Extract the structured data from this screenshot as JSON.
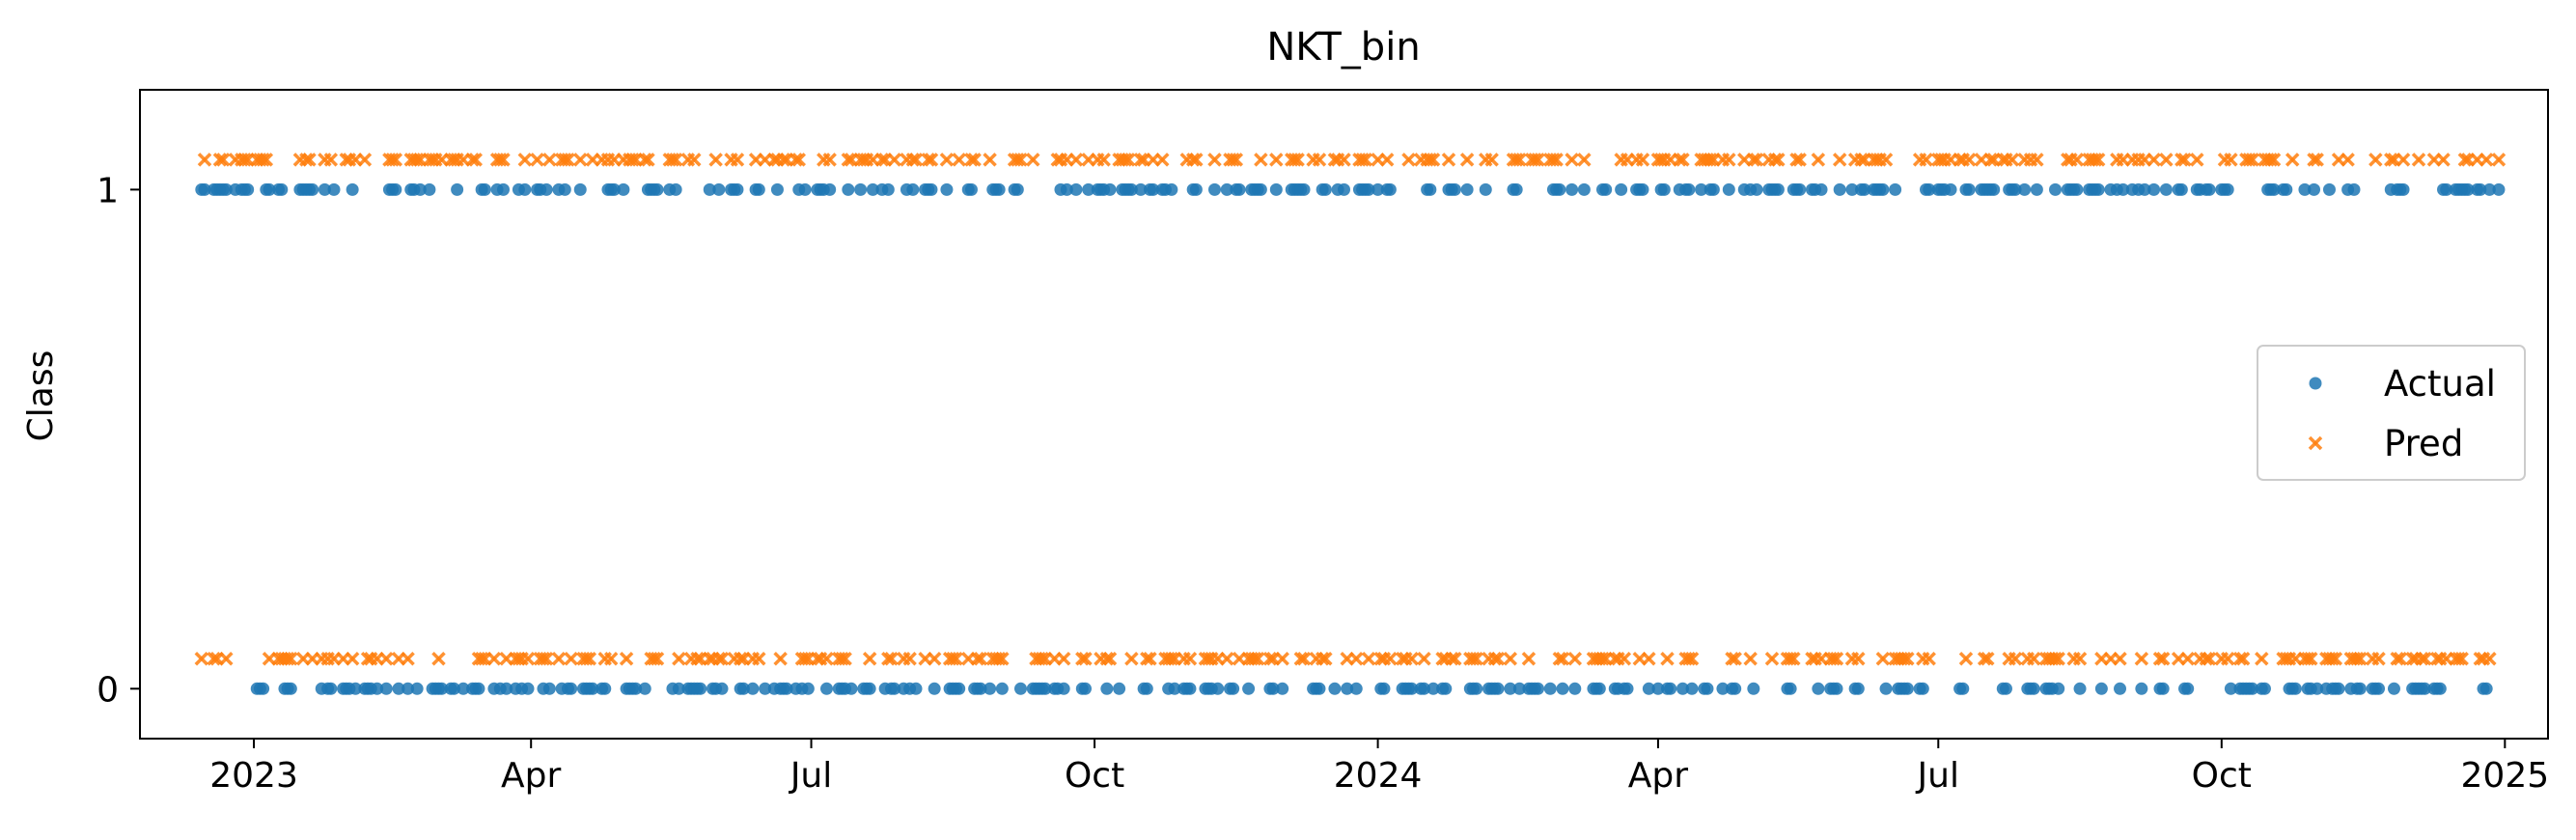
{
  "chart_data": {
    "type": "scatter",
    "title": "NKT_bin",
    "xlabel": "",
    "ylabel": "Class",
    "x_axis_type": "date",
    "xlim": [
      "2022-11-25",
      "2025-01-15"
    ],
    "ylim": [
      -0.1,
      1.2
    ],
    "x_ticks": [
      {
        "date": "2023-01-01",
        "label": "2023"
      },
      {
        "date": "2023-04-01",
        "label": "Apr"
      },
      {
        "date": "2023-07-01",
        "label": "Jul"
      },
      {
        "date": "2023-10-01",
        "label": "Oct"
      },
      {
        "date": "2024-01-01",
        "label": "2024"
      },
      {
        "date": "2024-04-01",
        "label": "Apr"
      },
      {
        "date": "2024-07-01",
        "label": "Jul"
      },
      {
        "date": "2024-10-01",
        "label": "Oct"
      },
      {
        "date": "2025-01-01",
        "label": "2025"
      }
    ],
    "y_ticks": [
      {
        "value": 0,
        "label": "0"
      },
      {
        "value": 1,
        "label": "1"
      }
    ],
    "grid": false,
    "legend_position": "center-right",
    "date_range": [
      "2022-12-15",
      "2024-12-30"
    ],
    "series": [
      {
        "name": "Actual",
        "marker": "circle",
        "color": "#1f77b4",
        "class_one_offset": 0.0,
        "class_zero_offset": 0.0
      },
      {
        "name": "Pred",
        "marker": "x",
        "color": "#ff7f0e",
        "class_one_offset": 0.06,
        "class_zero_offset": 0.06
      }
    ]
  }
}
